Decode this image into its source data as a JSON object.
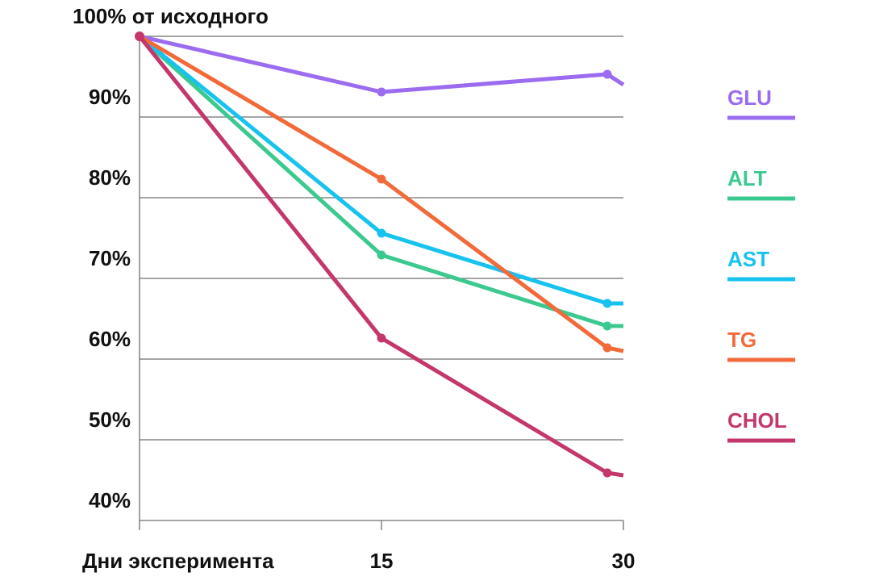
{
  "chart_data": {
    "type": "line",
    "title": "",
    "ylabel": "",
    "xlabel": "Дни эксперимента",
    "y_ticks": [
      "100% от исходного",
      "90%",
      "80%",
      "70%",
      "60%",
      "50%",
      "40%"
    ],
    "y_tick_values": [
      100,
      90,
      80,
      70,
      60,
      50,
      40
    ],
    "x_ticks": [
      "15",
      "30"
    ],
    "x_tick_values": [
      15,
      30
    ],
    "xlim": [
      0,
      30
    ],
    "ylim": [
      40,
      100
    ],
    "grid": true,
    "legend_position": "right",
    "series": [
      {
        "name": "GLU",
        "color": "#9b6cf0",
        "x": [
          0,
          15,
          29,
          30
        ],
        "y": [
          100,
          93.1,
          95.3,
          94
        ]
      },
      {
        "name": "ALT",
        "color": "#3cc98f",
        "x": [
          0,
          15,
          29,
          30
        ],
        "y": [
          100,
          72.9,
          64.1,
          64.1
        ]
      },
      {
        "name": "AST",
        "color": "#17c3ee",
        "x": [
          0,
          15,
          29,
          30
        ],
        "y": [
          100,
          75.6,
          66.9,
          66.9
        ]
      },
      {
        "name": "TG",
        "color": "#f26a3a",
        "x": [
          0,
          15,
          29,
          30
        ],
        "y": [
          100,
          82.3,
          61.4,
          61
        ]
      },
      {
        "name": "CHOL",
        "color": "#c4376c",
        "x": [
          0,
          15,
          29,
          30
        ],
        "y": [
          100,
          62.6,
          45.9,
          45.6
        ]
      }
    ]
  }
}
